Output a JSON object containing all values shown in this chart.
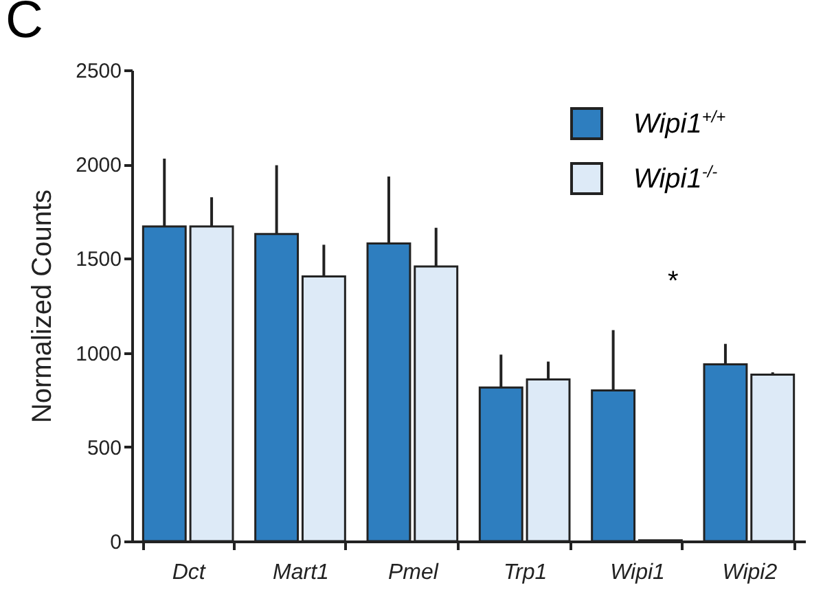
{
  "chart_data": {
    "type": "bar",
    "ylabel": "Normalized Counts",
    "categories": [
      "Dct",
      "Mart1",
      "Pmel",
      "Trp1",
      "Wipi1",
      "Wipi2"
    ],
    "series": [
      {
        "name": "Wipi1$^{+/+}$",
        "color": "#2e7ebf",
        "values": [
          1670,
          1630,
          1580,
          815,
          800,
          938
        ],
        "errors": [
          [
            1670,
            2030
          ],
          [
            1630,
            1995
          ],
          [
            1580,
            1935
          ],
          [
            815,
            990
          ],
          [
            800,
            1120
          ],
          [
            938,
            1047
          ]
        ]
      },
      {
        "name": "Wipi1$^{-/-}$",
        "color": "#ddeaf7",
        "values": [
          1670,
          1405,
          1458,
          858,
          5,
          884
        ],
        "errors": [
          [
            1670,
            1825
          ],
          [
            1405,
            1573
          ],
          [
            1458,
            1663
          ],
          [
            858,
            953
          ],
          null,
          [
            884,
            896
          ]
        ]
      }
    ],
    "ylim": [
      0,
      2500
    ],
    "yticks": [
      0,
      500,
      1000,
      1500,
      2000,
      2500
    ],
    "grid": false,
    "legend": "top right",
    "annotations": [
      "C",
      "*"
    ]
  }
}
